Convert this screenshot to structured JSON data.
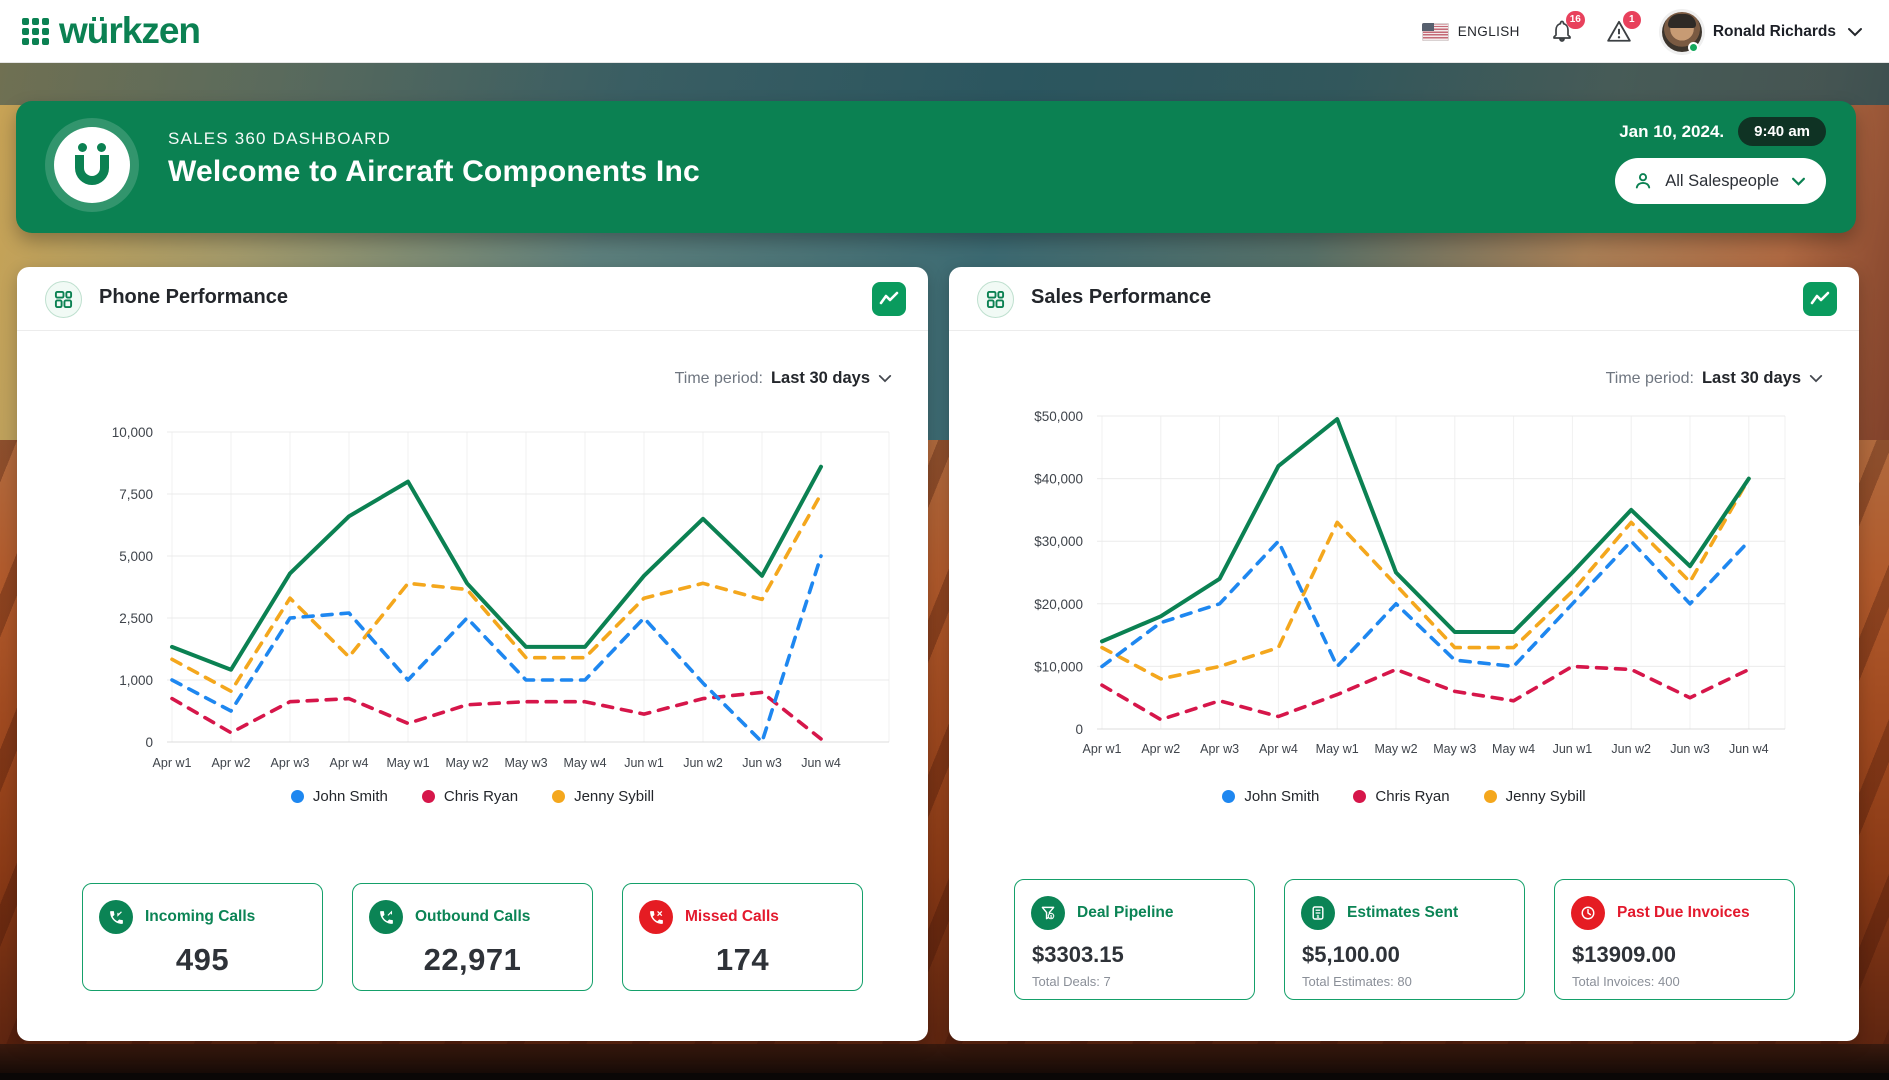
{
  "header": {
    "brand": "würkzen",
    "language": "ENGLISH",
    "notifications_badge": "16",
    "alerts_badge": "1",
    "user_name": "Ronald Richards"
  },
  "banner": {
    "eyebrow": "SALES 360 DASHBOARD",
    "title": "Welcome to Aircraft Components Inc",
    "date": "Jan 10, 2024.",
    "time": "9:40 am",
    "filter_label": "All Salespeople"
  },
  "phone_card": {
    "title": "Phone Performance",
    "period_label": "Time period:",
    "period_value": "Last 30 days",
    "stats": [
      {
        "label": "Incoming Calls",
        "value": "495",
        "tone": "green",
        "icon": "incoming-call-icon"
      },
      {
        "label": "Outbound Calls",
        "value": "22,971",
        "tone": "green",
        "icon": "outbound-call-icon"
      },
      {
        "label": "Missed Calls",
        "value": "174",
        "tone": "red",
        "icon": "missed-call-icon"
      }
    ]
  },
  "sales_card": {
    "title": "Sales Performance",
    "period_label": "Time period:",
    "period_value": "Last 30 days",
    "stats": [
      {
        "label": "Deal Pipeline",
        "value": "$3303.15",
        "sub": "Total Deals: 7",
        "tone": "green",
        "icon": "funnel-dollar-icon"
      },
      {
        "label": "Estimates Sent",
        "value": "$5,100.00",
        "sub": "Total Estimates: 80",
        "tone": "green",
        "icon": "estimate-icon"
      },
      {
        "label": "Past Due Invoices",
        "value": "$13909.00",
        "sub": "Total Invoices: 400",
        "tone": "red",
        "icon": "clock-icon"
      }
    ]
  },
  "chart_data": [
    {
      "type": "line",
      "title": "Phone Performance",
      "x": [
        "Apr w1",
        "Apr w2",
        "Apr w3",
        "Apr w4",
        "May w1",
        "May w2",
        "May w3",
        "May w4",
        "Jun w1",
        "Jun w2",
        "Jun w3",
        "Jun w4"
      ],
      "yticks": [
        0,
        1000,
        2500,
        5000,
        7500,
        10000
      ],
      "ytick_labels": [
        "0",
        "1,000",
        "2,500",
        "5,000",
        "7,500",
        "10,000"
      ],
      "grid": true,
      "legend_position": "bottom",
      "series": [
        {
          "name": "Total",
          "color": "#0b8152",
          "style": "solid",
          "in_legend": false,
          "values": [
            1800,
            1250,
            4300,
            6600,
            8000,
            3900,
            1800,
            1800,
            4200,
            6500,
            4200,
            8600
          ]
        },
        {
          "name": "John Smith",
          "color": "#1e87f0",
          "style": "dashed",
          "in_legend": true,
          "values": [
            1000,
            500,
            2500,
            2700,
            1000,
            2500,
            1000,
            1000,
            2500,
            950,
            0,
            5000
          ]
        },
        {
          "name": "Chris Ryan",
          "color": "#d6164a",
          "style": "dashed",
          "in_legend": true,
          "values": [
            700,
            150,
            650,
            700,
            300,
            600,
            650,
            650,
            450,
            700,
            800,
            50
          ]
        },
        {
          "name": "Jenny Sybill",
          "color": "#f4a71d",
          "style": "dashed",
          "in_legend": true,
          "values": [
            1500,
            820,
            3300,
            1560,
            3900,
            3650,
            1540,
            1540,
            3300,
            3900,
            3250,
            7500
          ]
        }
      ]
    },
    {
      "type": "line",
      "title": "Sales Performance",
      "x": [
        "Apr w1",
        "Apr w2",
        "Apr w3",
        "Apr w4",
        "May w1",
        "May w2",
        "May w3",
        "May w4",
        "Jun w1",
        "Jun w2",
        "Jun w3",
        "Jun w4"
      ],
      "yticks": [
        0,
        10000,
        20000,
        30000,
        40000,
        50000
      ],
      "ytick_labels": [
        "0",
        "$10,000",
        "$20,000",
        "$30,000",
        "$40,000",
        "$50,000"
      ],
      "grid": true,
      "legend_position": "bottom",
      "series": [
        {
          "name": "Total",
          "color": "#0b8152",
          "style": "solid",
          "in_legend": false,
          "values": [
            14000,
            18000,
            24000,
            42000,
            49500,
            25000,
            15500,
            15500,
            25000,
            35000,
            26000,
            40000
          ]
        },
        {
          "name": "John Smith",
          "color": "#1e87f0",
          "style": "dashed",
          "in_legend": true,
          "values": [
            10000,
            17000,
            20000,
            30000,
            10000,
            20000,
            11000,
            10000,
            20000,
            30000,
            20000,
            30000
          ]
        },
        {
          "name": "Chris Ryan",
          "color": "#d6164a",
          "style": "dashed",
          "in_legend": true,
          "values": [
            7000,
            1500,
            4500,
            2000,
            5500,
            9500,
            6000,
            4500,
            10000,
            9500,
            5000,
            9500
          ]
        },
        {
          "name": "Jenny Sybill",
          "color": "#f4a71d",
          "style": "dashed",
          "in_legend": true,
          "values": [
            13000,
            8000,
            10000,
            13000,
            33000,
            23000,
            13000,
            13000,
            22000,
            33000,
            23500,
            40000
          ]
        }
      ]
    }
  ],
  "colors": {
    "brand_green": "#0b8152",
    "accent_green": "#0a9b5e",
    "blue": "#1e87f0",
    "crimson": "#d6164a",
    "amber": "#f4a71d",
    "alert_red": "#e51c23",
    "badge_red": "#e8415c"
  }
}
